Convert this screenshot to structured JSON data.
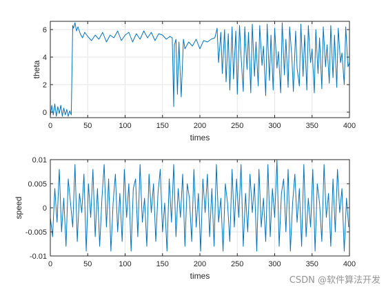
{
  "watermark": "CSDN @软件算法开发",
  "colors": {
    "line": "#0072BD",
    "grid": "#e6e6e6",
    "axis": "#262626"
  },
  "chart_data": [
    {
      "type": "line",
      "xlabel": "times",
      "ylabel": "theta",
      "xlim": [
        0,
        400
      ],
      "ylim": [
        -0.4,
        6.6
      ],
      "xticks": [
        0,
        50,
        100,
        150,
        200,
        250,
        300,
        350,
        400
      ],
      "yticks": [
        0,
        2,
        4,
        6
      ],
      "grid": true,
      "series": [
        {
          "x": [
            0,
            2,
            4,
            6,
            8,
            10,
            12,
            14,
            16,
            18,
            20,
            22,
            24,
            26,
            28,
            30,
            31,
            33,
            35,
            37,
            40,
            43,
            46,
            50,
            55,
            60,
            65,
            70,
            75,
            80,
            85,
            90,
            95,
            100,
            105,
            110,
            115,
            120,
            125,
            130,
            135,
            140,
            145,
            150,
            155,
            160,
            163,
            165,
            166,
            168,
            170,
            172,
            175,
            178,
            180,
            185,
            190,
            195,
            200,
            205,
            210,
            215,
            220,
            223,
            225,
            228,
            230,
            233,
            235,
            238,
            240,
            243,
            245,
            248,
            250,
            253,
            255,
            258,
            260,
            263,
            265,
            268,
            270,
            273,
            275,
            278,
            280,
            283,
            285,
            288,
            290,
            293,
            295,
            298,
            300,
            303,
            305,
            308,
            310,
            313,
            315,
            318,
            320,
            323,
            325,
            328,
            330,
            333,
            335,
            338,
            340,
            343,
            345,
            348,
            350,
            353,
            355,
            358,
            360,
            363,
            365,
            368,
            370,
            373,
            375,
            378,
            380,
            383,
            385,
            388,
            390,
            393,
            395,
            398,
            400
          ],
          "y": [
            -0.3,
            0.5,
            -0.2,
            0.6,
            -0.3,
            0.4,
            -0.1,
            0.5,
            -0.3,
            0.3,
            -0.2,
            0.2,
            -0.3,
            0.1,
            -0.2,
            6.3,
            6.1,
            6.5,
            5.9,
            6.2,
            5.7,
            5.4,
            5.8,
            5.5,
            5.2,
            5.6,
            5.3,
            5.8,
            5.1,
            5.6,
            5.4,
            5.9,
            5.2,
            5.6,
            5.8,
            5.1,
            5.7,
            5.3,
            5.9,
            5.4,
            5.8,
            5.2,
            5.7,
            5.6,
            5.3,
            5.5,
            5.4,
            0.4,
            4.9,
            5.3,
            1.3,
            5.1,
            1.1,
            5.3,
            4.6,
            5.1,
            4.8,
            5.3,
            4.6,
            5.2,
            5.1,
            5.3,
            5.4,
            6.1,
            3.6,
            5.8,
            2.8,
            6.0,
            2.2,
            5.7,
            1.6,
            6.2,
            2.4,
            5.9,
            1.3,
            6.3,
            4.1,
            1.5,
            6.2,
            3.1,
            5.8,
            1.4,
            6.4,
            2.6,
            5.1,
            1.9,
            6.3,
            3.4,
            4.8,
            1.2,
            6.4,
            2.3,
            5.6,
            1.6,
            6.1,
            3.2,
            4.4,
            1.4,
            6.5,
            2.7,
            5.3,
            1.8,
            6.2,
            3.9,
            1.5,
            5.9,
            3.2,
            1.9,
            6.4,
            2.6,
            5.6,
            1.6,
            6.3,
            3.6,
            4.6,
            1.4,
            6.0,
            2.8,
            5.4,
            1.7,
            6.2,
            3.3,
            4.9,
            2.1,
            6.3,
            2.5,
            5.6,
            1.8,
            6.1,
            3.6,
            4.3,
            2.0,
            6.2,
            3.3,
            3.6
          ]
        }
      ]
    },
    {
      "type": "line",
      "xlabel": "times",
      "ylabel": "speed",
      "xlim": [
        0,
        400
      ],
      "ylim": [
        -0.01,
        0.01
      ],
      "xticks": [
        0,
        50,
        100,
        150,
        200,
        250,
        300,
        350,
        400
      ],
      "yticks": [
        -0.01,
        -0.005,
        0,
        0.005,
        0.01
      ],
      "ytick_labels": [
        "-0.01",
        "-0.005",
        "0",
        "0.005",
        "0.01"
      ],
      "grid": true,
      "series": [
        {
          "x": [
            0,
            3,
            6,
            9,
            12,
            15,
            18,
            21,
            24,
            27,
            30,
            33,
            36,
            39,
            42,
            45,
            48,
            51,
            54,
            57,
            60,
            63,
            66,
            69,
            72,
            75,
            78,
            81,
            84,
            87,
            90,
            93,
            96,
            99,
            102,
            105,
            108,
            111,
            114,
            117,
            120,
            123,
            126,
            129,
            132,
            135,
            138,
            141,
            144,
            147,
            150,
            153,
            156,
            159,
            162,
            165,
            168,
            171,
            174,
            177,
            180,
            183,
            186,
            189,
            192,
            195,
            198,
            201,
            204,
            207,
            210,
            213,
            216,
            219,
            222,
            225,
            228,
            231,
            234,
            237,
            240,
            243,
            246,
            249,
            252,
            255,
            258,
            261,
            264,
            267,
            270,
            273,
            276,
            279,
            282,
            285,
            288,
            291,
            294,
            297,
            300,
            303,
            306,
            309,
            312,
            315,
            318,
            321,
            324,
            327,
            330,
            333,
            336,
            339,
            342,
            345,
            348,
            351,
            354,
            357,
            360,
            363,
            366,
            369,
            372,
            375,
            378,
            381,
            384,
            387,
            390,
            393,
            396,
            399
          ],
          "y": [
            -0.002,
            -0.006,
            0.004,
            -0.003,
            0.008,
            -0.005,
            0.002,
            -0.008,
            0.006,
            0.001,
            -0.004,
            0.009,
            -0.007,
            0.003,
            -0.001,
            0.007,
            -0.009,
            0.005,
            -0.002,
            0.008,
            -0.006,
            0.004,
            -0.008,
            0.002,
            0.009,
            -0.004,
            0.006,
            -0.009,
            0.001,
            0.007,
            -0.005,
            0.003,
            -0.007,
            0.008,
            -0.002,
            0.005,
            -0.009,
            0.004,
            0.006,
            -0.006,
            0.009,
            -0.003,
            0.002,
            -0.008,
            0.007,
            -0.001,
            0.005,
            -0.007,
            0.003,
            0.008,
            -0.005,
            0.001,
            -0.009,
            0.006,
            -0.003,
            0.009,
            -0.006,
            0.004,
            -0.002,
            0.007,
            -0.008,
            0.005,
            0.002,
            -0.007,
            0.008,
            -0.004,
            0.003,
            -0.009,
            0.006,
            -0.001,
            0.007,
            -0.006,
            0.004,
            -0.008,
            0.009,
            -0.003,
            0.002,
            -0.009,
            0.005,
            0.001,
            -0.007,
            0.008,
            -0.004,
            0.006,
            -0.002,
            0.009,
            -0.008,
            0.003,
            -0.005,
            0.007,
            -0.001,
            0.005,
            -0.009,
            0.008,
            -0.004,
            0.002,
            -0.007,
            0.009,
            -0.006,
            0.004,
            -0.002,
            0.01,
            -0.008,
            0.003,
            0.006,
            -0.005,
            0.008,
            -0.009,
            0.001,
            0.007,
            -0.003,
            0.004,
            -0.008,
            0.009,
            -0.006,
            0.002,
            -0.004,
            0.008,
            -0.009,
            0.005,
            0.001,
            -0.007,
            0.009,
            -0.002,
            0.003,
            -0.008,
            0.006,
            -0.005,
            0.008,
            -0.001,
            0.004,
            -0.009,
            0.002,
            -0.004
          ]
        }
      ]
    }
  ]
}
